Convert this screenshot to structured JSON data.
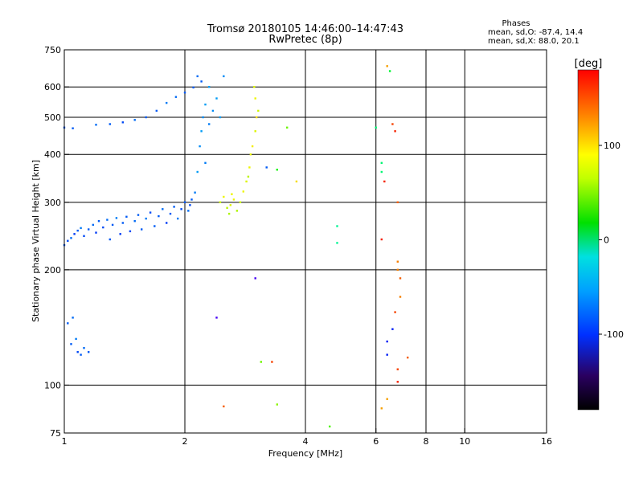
{
  "chart_data": {
    "type": "scatter",
    "title": "Tromsø 20180105 14:46:00–14:47:43",
    "subtitle": "RwPretec (8p)",
    "annotation": {
      "heading": "Phases",
      "line1": "mean, sd,O: -87.4, 14.4",
      "line2": "mean, sd,X:  88.0, 20.1"
    },
    "xlabel": "Frequency [MHz]",
    "ylabel": "Stationary phase Virtual Height [km]",
    "x_scale": "log",
    "y_scale": "log",
    "xlim": [
      1,
      16
    ],
    "ylim": [
      75,
      750
    ],
    "xticks": [
      1,
      2,
      4,
      6,
      8,
      10,
      16
    ],
    "yticks": [
      75,
      100,
      200,
      300,
      400,
      500,
      600,
      750
    ],
    "grid": true,
    "colorbar": {
      "label": "[deg]",
      "range": [
        -180,
        180
      ],
      "ticks": [
        100,
        0,
        -100
      ],
      "colormap": "rainbow"
    },
    "series": [
      {
        "points": [
          [
            1.0,
            232,
            -100
          ],
          [
            1.02,
            238,
            -105
          ],
          [
            1.04,
            242,
            -95
          ],
          [
            1.06,
            248,
            -110
          ],
          [
            1.08,
            253,
            -100
          ],
          [
            1.1,
            257,
            -90
          ],
          [
            1.12,
            245,
            -105
          ],
          [
            1.15,
            255,
            -100
          ],
          [
            1.18,
            262,
            -95
          ],
          [
            1.2,
            250,
            -110
          ],
          [
            1.22,
            268,
            -100
          ],
          [
            1.25,
            258,
            -105
          ],
          [
            1.28,
            270,
            -95
          ],
          [
            1.3,
            240,
            -100
          ],
          [
            1.32,
            262,
            -100
          ],
          [
            1.35,
            273,
            -90
          ],
          [
            1.38,
            248,
            -110
          ],
          [
            1.4,
            265,
            -100
          ],
          [
            1.43,
            275,
            -100
          ],
          [
            1.46,
            252,
            -105
          ],
          [
            1.5,
            268,
            -95
          ],
          [
            1.53,
            278,
            -100
          ],
          [
            1.56,
            255,
            -100
          ],
          [
            1.6,
            272,
            -90
          ],
          [
            1.64,
            282,
            -105
          ],
          [
            1.68,
            260,
            -100
          ],
          [
            1.72,
            276,
            -100
          ],
          [
            1.76,
            288,
            -95
          ],
          [
            1.8,
            265,
            -110
          ],
          [
            1.84,
            280,
            -100
          ],
          [
            1.88,
            292,
            -100
          ],
          [
            1.92,
            272,
            -90
          ],
          [
            1.96,
            288,
            -105
          ],
          [
            2.0,
            300,
            -100
          ],
          [
            2.04,
            285,
            -95
          ],
          [
            2.08,
            305,
            -100
          ],
          [
            2.12,
            318,
            -90
          ],
          [
            2.06,
            295,
            -105
          ],
          [
            1.0,
            470,
            -100
          ],
          [
            1.05,
            468,
            -100
          ],
          [
            1.2,
            478,
            -95
          ],
          [
            1.3,
            480,
            -100
          ],
          [
            1.4,
            485,
            -105
          ],
          [
            1.5,
            492,
            -95
          ],
          [
            1.6,
            500,
            -100
          ],
          [
            1.7,
            520,
            -100
          ],
          [
            1.8,
            545,
            -90
          ],
          [
            1.9,
            565,
            -95
          ],
          [
            2.0,
            580,
            -100
          ],
          [
            2.1,
            598,
            -100
          ],
          [
            2.2,
            620,
            -100
          ],
          [
            2.15,
            640,
            -95
          ],
          [
            2.15,
            360,
            -80
          ],
          [
            2.18,
            420,
            -85
          ],
          [
            2.2,
            460,
            -80
          ],
          [
            2.22,
            500,
            -85
          ],
          [
            2.25,
            540,
            -80
          ],
          [
            2.3,
            480,
            -90
          ],
          [
            2.35,
            520,
            -85
          ],
          [
            2.4,
            560,
            -80
          ],
          [
            2.25,
            380,
            -90
          ],
          [
            2.3,
            600,
            -80
          ],
          [
            2.45,
            500,
            -80
          ],
          [
            2.5,
            640,
            -85
          ],
          [
            1.02,
            145,
            -100
          ],
          [
            1.05,
            150,
            -95
          ],
          [
            1.04,
            128,
            -100
          ],
          [
            1.08,
            122,
            -105
          ],
          [
            1.1,
            120,
            -100
          ],
          [
            1.12,
            125,
            -95
          ],
          [
            1.15,
            122,
            -100
          ],
          [
            1.07,
            132,
            -90
          ],
          [
            2.45,
            300,
            90
          ],
          [
            2.5,
            310,
            100
          ],
          [
            2.55,
            290,
            85
          ],
          [
            2.6,
            295,
            95
          ],
          [
            2.65,
            305,
            100
          ],
          [
            2.7,
            285,
            80
          ],
          [
            2.75,
            300,
            90
          ],
          [
            2.8,
            320,
            100
          ],
          [
            2.85,
            340,
            95
          ],
          [
            2.9,
            370,
            100
          ],
          [
            2.95,
            420,
            105
          ],
          [
            3.0,
            460,
            95
          ],
          [
            3.05,
            520,
            90
          ],
          [
            3.0,
            560,
            100
          ],
          [
            2.98,
            600,
            95
          ],
          [
            3.02,
            500,
            110
          ],
          [
            2.92,
            400,
            100
          ],
          [
            2.88,
            350,
            85
          ],
          [
            2.58,
            280,
            80
          ],
          [
            2.62,
            315,
            100
          ],
          [
            3.6,
            470,
            60
          ],
          [
            3.8,
            340,
            110
          ],
          [
            3.2,
            370,
            -100
          ],
          [
            3.4,
            365,
            30
          ],
          [
            2.4,
            150,
            -150
          ],
          [
            3.0,
            190,
            -150
          ],
          [
            3.1,
            115,
            60
          ],
          [
            3.3,
            115,
            160
          ],
          [
            2.5,
            88,
            150
          ],
          [
            3.4,
            89,
            70
          ],
          [
            4.6,
            78,
            50
          ],
          [
            4.8,
            260,
            -20
          ],
          [
            4.8,
            235,
            -20
          ],
          [
            6.0,
            470,
            -10
          ],
          [
            6.2,
            360,
            -10
          ],
          [
            6.2,
            380,
            -10
          ],
          [
            6.3,
            340,
            170
          ],
          [
            6.2,
            240,
            170
          ],
          [
            6.4,
            680,
            130
          ],
          [
            6.5,
            660,
            10
          ],
          [
            6.6,
            480,
            160
          ],
          [
            6.7,
            460,
            170
          ],
          [
            6.8,
            300,
            150
          ],
          [
            6.8,
            210,
            140
          ],
          [
            6.8,
            200,
            140
          ],
          [
            6.9,
            190,
            150
          ],
          [
            6.9,
            170,
            140
          ],
          [
            6.7,
            155,
            160
          ],
          [
            6.6,
            140,
            -120
          ],
          [
            6.4,
            130,
            -120
          ],
          [
            6.4,
            120,
            -120
          ],
          [
            6.8,
            110,
            160
          ],
          [
            7.2,
            118,
            150
          ],
          [
            6.8,
            102,
            170
          ],
          [
            6.4,
            92,
            130
          ],
          [
            6.2,
            87,
            130
          ]
        ]
      }
    ]
  }
}
